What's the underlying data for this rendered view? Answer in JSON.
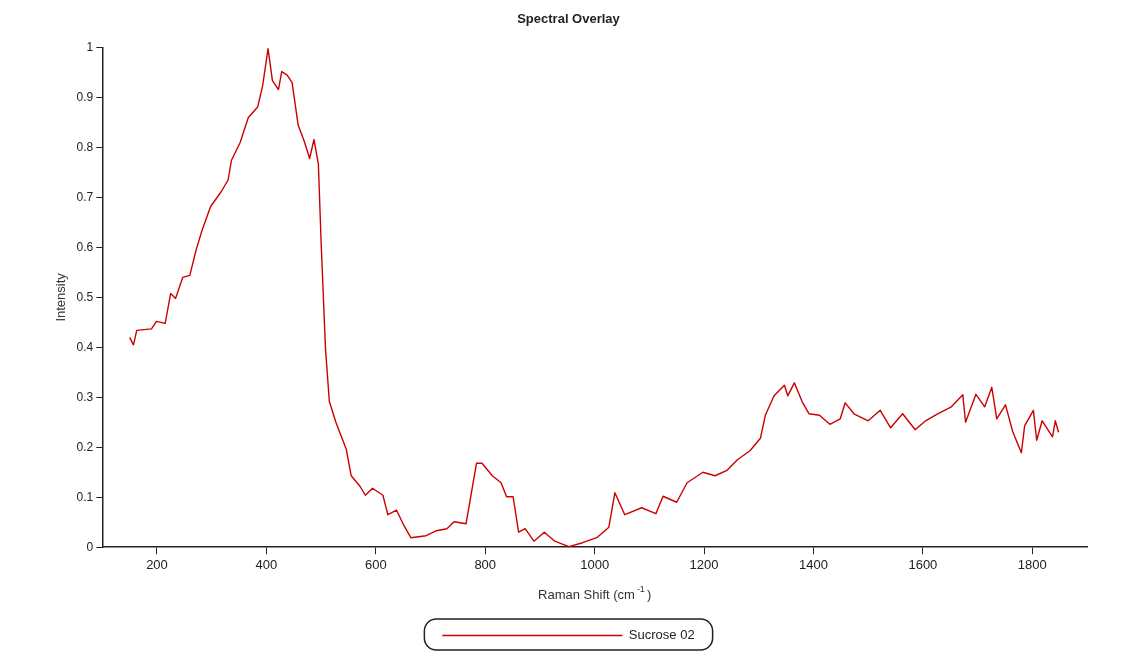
{
  "chart_data": {
    "type": "line",
    "title": "Spectral Overlay",
    "xlabel": "Raman Shift (cm$^{-1}$)",
    "ylabel": "Intensity",
    "xlim": [
      100,
      1900
    ],
    "xticks": [
      200,
      400,
      600,
      800,
      1000,
      1200,
      1400,
      1600,
      1800
    ],
    "ylim": [
      0,
      1
    ],
    "yticks": [
      0,
      0.1,
      0.2,
      0.3,
      0.4,
      0.5,
      0.6,
      0.7,
      0.8,
      0.9,
      1
    ],
    "grid": false,
    "legend": "bottom",
    "marker": "none",
    "line_style": "solid",
    "series": [
      {
        "name": "Sucrose 02",
        "color": "#cc0000",
        "x": [
          150,
          157,
          163,
          190,
          199,
          215,
          225,
          234,
          247,
          260,
          272,
          282,
          298,
          317,
          330,
          336,
          352,
          367,
          384,
          393,
          403,
          411,
          422,
          428,
          438,
          447,
          458,
          470,
          479,
          487,
          495,
          500,
          508,
          515,
          527,
          546,
          555,
          571,
          581,
          594,
          613,
          622,
          638,
          651,
          664,
          692,
          711,
          730,
          743,
          765,
          784,
          794,
          813,
          829,
          839,
          851,
          861,
          873,
          889,
          908,
          927,
          953,
          978,
          1004,
          1026,
          1037,
          1055,
          1086,
          1112,
          1125,
          1150,
          1169,
          1198,
          1220,
          1242,
          1261,
          1284,
          1303,
          1312,
          1328,
          1347,
          1353,
          1365,
          1379,
          1392,
          1411,
          1430,
          1449,
          1458,
          1474,
          1500,
          1522,
          1541,
          1563,
          1586,
          1605,
          1627,
          1652,
          1673,
          1678,
          1697,
          1713,
          1726,
          1735,
          1751,
          1764,
          1780,
          1786,
          1802,
          1808,
          1818,
          1837,
          1842,
          1848
        ],
        "values": [
          0.42,
          0.405,
          0.434,
          0.437,
          0.452,
          0.448,
          0.508,
          0.498,
          0.54,
          0.544,
          0.597,
          0.633,
          0.682,
          0.711,
          0.735,
          0.774,
          0.81,
          0.86,
          0.881,
          0.923,
          0.998,
          0.934,
          0.916,
          0.952,
          0.945,
          0.93,
          0.845,
          0.81,
          0.778,
          0.816,
          0.767,
          0.611,
          0.398,
          0.292,
          0.25,
          0.196,
          0.143,
          0.122,
          0.104,
          0.118,
          0.104,
          0.065,
          0.074,
          0.044,
          0.019,
          0.023,
          0.033,
          0.037,
          0.051,
          0.047,
          0.168,
          0.168,
          0.143,
          0.129,
          0.101,
          0.101,
          0.03,
          0.037,
          0.012,
          0.03,
          0.012,
          0.001,
          0.009,
          0.019,
          0.04,
          0.109,
          0.065,
          0.079,
          0.067,
          0.102,
          0.09,
          0.129,
          0.15,
          0.143,
          0.154,
          0.175,
          0.193,
          0.218,
          0.264,
          0.303,
          0.324,
          0.303,
          0.329,
          0.292,
          0.267,
          0.264,
          0.246,
          0.257,
          0.289,
          0.267,
          0.253,
          0.274,
          0.239,
          0.267,
          0.235,
          0.253,
          0.267,
          0.281,
          0.305,
          0.25,
          0.306,
          0.281,
          0.32,
          0.257,
          0.285,
          0.232,
          0.189,
          0.243,
          0.274,
          0.214,
          0.253,
          0.221,
          0.253,
          0.23
        ]
      }
    ]
  }
}
